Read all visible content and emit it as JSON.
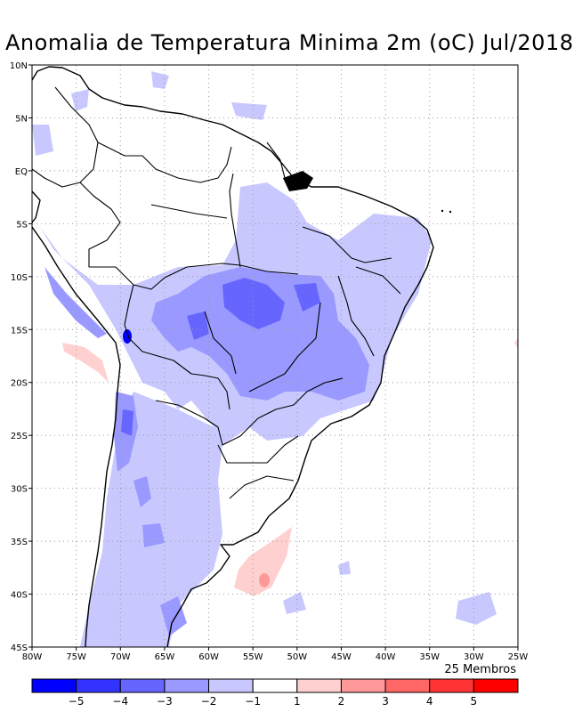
{
  "title": "Anomalia de Temperatura Minima 2m (oC) Jul/2018",
  "members_label": "25 Membros",
  "map": {
    "lon_min": -80,
    "lon_max": -25,
    "lat_min": -45,
    "lat_max": 10,
    "x_ticks": [
      "80W",
      "75W",
      "70W",
      "65W",
      "60W",
      "55W",
      "50W",
      "45W",
      "40W",
      "35W",
      "30W",
      "25W"
    ],
    "y_ticks": [
      "10N",
      "5N",
      "EQ",
      "5S",
      "10S",
      "15S",
      "20S",
      "25S",
      "30S",
      "35S",
      "40S",
      "45S"
    ],
    "grid": "dotted"
  },
  "colorbar": {
    "colors": [
      "#0000ff",
      "#3333ff",
      "#6666ff",
      "#9999ff",
      "#c8c8ff",
      "#ffffff",
      "#ffd0d0",
      "#ff9999",
      "#ff6666",
      "#ff3333",
      "#ff0000"
    ],
    "labels": [
      "−5",
      "−4",
      "−3",
      "−2",
      "−1",
      "1",
      "2",
      "3",
      "4",
      "5"
    ]
  }
}
